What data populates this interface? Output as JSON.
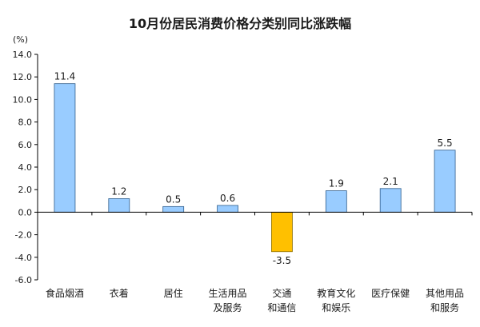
{
  "chart_data": {
    "type": "bar",
    "title": "10月份居民消费价格分类别同比涨跌幅",
    "unit_label": "(%)",
    "xlabel": "",
    "ylabel": "",
    "ylim": [
      -6.0,
      14.0
    ],
    "y_ticks": [
      "14.0",
      "12.0",
      "10.0",
      "8.0",
      "6.0",
      "4.0",
      "2.0",
      "0.0",
      "-2.0",
      "-4.0",
      "-6.0"
    ],
    "grid": false,
    "categories": [
      [
        "食品烟酒"
      ],
      [
        "衣着"
      ],
      [
        "居住"
      ],
      [
        "生活用品",
        "及服务"
      ],
      [
        "交通",
        "和通信"
      ],
      [
        "教育文化",
        "和娱乐"
      ],
      [
        "医疗保健"
      ],
      [
        "其他用品",
        "和服务"
      ]
    ],
    "values": [
      11.4,
      1.2,
      0.5,
      0.6,
      -3.5,
      1.9,
      2.1,
      5.5
    ],
    "value_labels": [
      "11.4",
      "1.2",
      "0.5",
      "0.6",
      "-3.5",
      "1.9",
      "2.1",
      "5.5"
    ],
    "colors": {
      "positive": "#99ccff",
      "negative": "#ffc000",
      "bar_stroke": "#2e5d8c",
      "negative_stroke": "#8a6d00",
      "axis": "#000000"
    }
  }
}
